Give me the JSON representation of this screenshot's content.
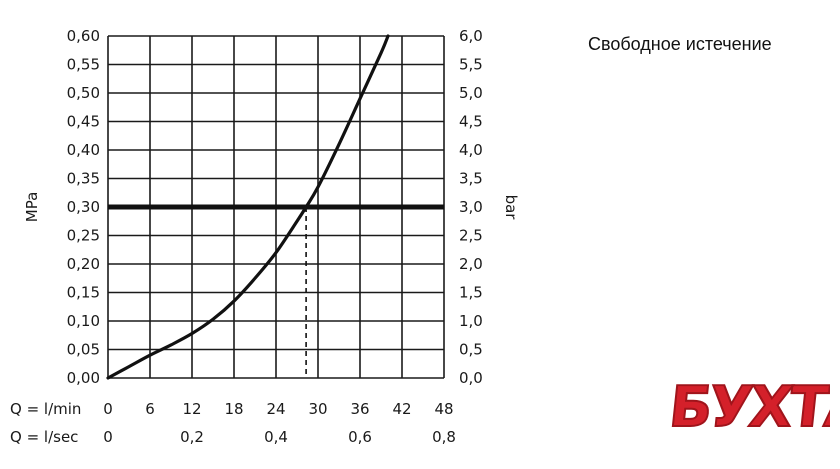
{
  "chart_data": {
    "type": "line",
    "title": "Свободное истечение",
    "ylabel_left": "MPa",
    "ylabel_right": "bar",
    "x_row1_label": "Q = l/min",
    "x_row1_ticks": [
      "0",
      "6",
      "12",
      "18",
      "24",
      "30",
      "36",
      "42",
      "48"
    ],
    "x_row2_label": "Q = l/sec",
    "x_row2_ticks": [
      "0",
      "0,2",
      "0,4",
      "0,6",
      "0,8"
    ],
    "y_left_ticks": [
      "0,00",
      "0,05",
      "0,10",
      "0,15",
      "0,20",
      "0,25",
      "0,30",
      "0,35",
      "0,40",
      "0,45",
      "0,50",
      "0,55",
      "0,60"
    ],
    "y_right_ticks": [
      "0,0",
      "0,5",
      "1,0",
      "1,5",
      "2,0",
      "2,5",
      "3,0",
      "3,5",
      "4,0",
      "4,5",
      "5,0",
      "5,5",
      "6,0"
    ],
    "xlim": [
      0,
      48
    ],
    "ylim": [
      0,
      0.6
    ],
    "grid": true,
    "series": [
      {
        "x": [
          0,
          3,
          6,
          9,
          12,
          15,
          18,
          21,
          24,
          27,
          28.3,
          30,
          33,
          36,
          39,
          40
        ],
        "y": [
          0,
          0.02,
          0.04,
          0.058,
          0.078,
          0.103,
          0.135,
          0.175,
          0.22,
          0.275,
          0.3,
          0.335,
          0.41,
          0.49,
          0.57,
          0.6
        ]
      }
    ],
    "reference_line": {
      "y": 0.3
    },
    "reference_marker": {
      "x": 28.3
    }
  },
  "logo": {
    "text": "БУХТА",
    "color": "#d4202a"
  }
}
